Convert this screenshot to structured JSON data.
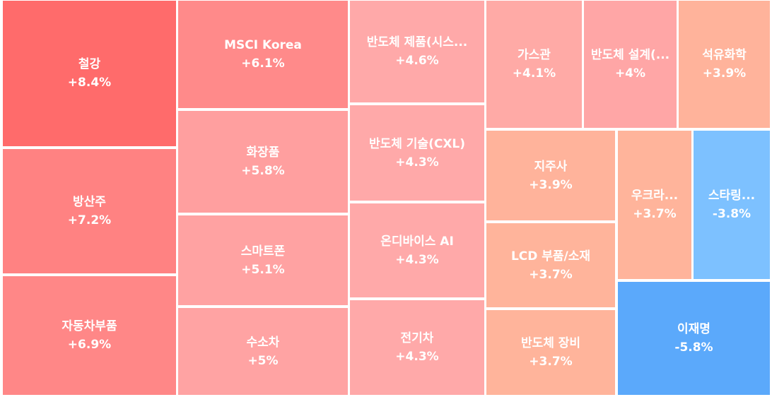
{
  "chart_data": {
    "type": "treemap",
    "items": [
      {
        "label": "철강",
        "value": "+8.4%",
        "change": 8.4,
        "color": "#ff6b6b"
      },
      {
        "label": "방산주",
        "value": "+7.2%",
        "change": 7.2,
        "color": "#ff8282"
      },
      {
        "label": "자동차부품",
        "value": "+6.9%",
        "change": 6.9,
        "color": "#ff8787"
      },
      {
        "label": "MSCI Korea",
        "value": "+6.1%",
        "change": 6.1,
        "color": "#ff8a8a"
      },
      {
        "label": "화장품",
        "value": "+5.8%",
        "change": 5.8,
        "color": "#ff9f9f"
      },
      {
        "label": "스마트폰",
        "value": "+5.1%",
        "change": 5.1,
        "color": "#ffa2a2"
      },
      {
        "label": "수소차",
        "value": "+5%",
        "change": 5.0,
        "color": "#ffa3a3"
      },
      {
        "label": "반도체 제품(시스...",
        "value": "+4.6%",
        "change": 4.6,
        "color": "#ffa9a9"
      },
      {
        "label": "반도체 기술(CXL)",
        "value": "+4.3%",
        "change": 4.3,
        "color": "#ffa9a9"
      },
      {
        "label": "온디바이스 AI",
        "value": "+4.3%",
        "change": 4.3,
        "color": "#ffa9a9"
      },
      {
        "label": "전기차",
        "value": "+4.3%",
        "change": 4.3,
        "color": "#ffa9a9"
      },
      {
        "label": "가스관",
        "value": "+4.1%",
        "change": 4.1,
        "color": "#ffaaa6"
      },
      {
        "label": "반도체 설계(...",
        "value": "+4%",
        "change": 4.0,
        "color": "#ffa6a6"
      },
      {
        "label": "석유화학",
        "value": "+3.9%",
        "change": 3.9,
        "color": "#ffb39b"
      },
      {
        "label": "지주사",
        "value": "+3.9%",
        "change": 3.9,
        "color": "#ffb39b"
      },
      {
        "label": "LCD 부품/소재",
        "value": "+3.7%",
        "change": 3.7,
        "color": "#ffb49b"
      },
      {
        "label": "반도체 장비",
        "value": "+3.7%",
        "change": 3.7,
        "color": "#ffb49b"
      },
      {
        "label": "우크라...",
        "value": "+3.7%",
        "change": 3.7,
        "color": "#ffb49b"
      },
      {
        "label": "스타링...",
        "value": "-3.8%",
        "change": -3.8,
        "color": "#7dc1ff"
      },
      {
        "label": "이재명",
        "value": "-5.8%",
        "change": -5.8,
        "color": "#5ba9fb"
      }
    ]
  }
}
